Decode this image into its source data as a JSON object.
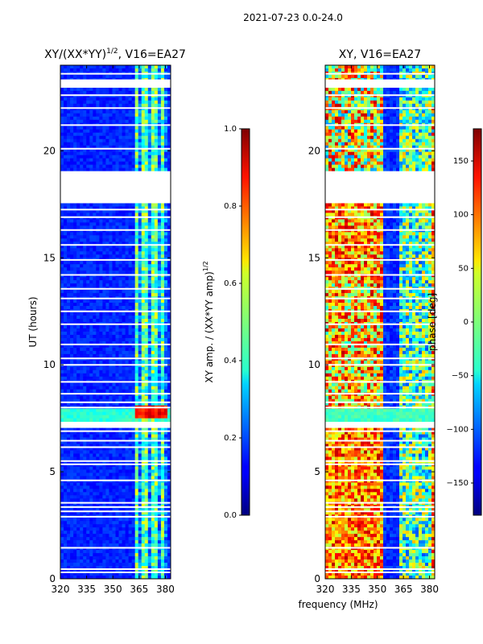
{
  "chart_data": {
    "suptitle": "2021-07-23 0.0-24.0",
    "shared_xlabel": "frequency (MHz)",
    "panels": [
      {
        "id": "amp",
        "type": "heatmap",
        "title": "XY/(XX*YY)^{1/2}, V16=EA27",
        "title_main": "XY/(XX*YY)",
        "title_exp": "1/2",
        "title_tail": ", V16=EA27",
        "ylabel": "UT (hours)",
        "xlim": [
          320,
          383
        ],
        "ylim": [
          0,
          24
        ],
        "xticks": [
          "320",
          "335",
          "350",
          "365",
          "380"
        ],
        "xtick_values": [
          320,
          335,
          350,
          365,
          380
        ],
        "yticks": [
          "0",
          "5",
          "10",
          "15",
          "20"
        ],
        "ytick_values": [
          0,
          5,
          10,
          15,
          20
        ],
        "bright_band_mhz": [
          360,
          382
        ],
        "gaps_ut": [
          [
            19.05,
            17.6
          ],
          [
            23.3,
            22.95
          ],
          [
            7.05,
            7.3
          ],
          [
            13.45,
            13.65
          ]
        ]
      },
      {
        "id": "phase",
        "type": "heatmap",
        "title": "XY, V16=EA27",
        "ylabel": "",
        "xlim": [
          320,
          383
        ],
        "ylim": [
          0,
          24
        ],
        "xticks": [
          "320",
          "335",
          "350",
          "365",
          "380"
        ],
        "xtick_values": [
          320,
          335,
          350,
          365,
          380
        ],
        "yticks": [
          "0",
          "5",
          "10",
          "15",
          "20"
        ],
        "ytick_values": [
          0,
          5,
          10,
          15,
          20
        ]
      }
    ],
    "colorbars": [
      {
        "id": "cb-amp",
        "label_main": "XY amp. / (XX*YY amp)",
        "label_exp": "1/2",
        "range": [
          0.0,
          1.0
        ],
        "ticks": [
          0.0,
          0.2,
          0.4,
          0.6,
          0.8,
          1.0
        ],
        "tick_labels": [
          "0.0",
          "0.2",
          "0.4",
          "0.6",
          "0.8",
          "1.0"
        ],
        "colormap": "jet"
      },
      {
        "id": "cb-phase",
        "label": "phase [deg]",
        "range": [
          -180,
          180
        ],
        "ticks": [
          -150,
          -100,
          -50,
          0,
          50,
          100,
          150
        ],
        "tick_labels": [
          "−150",
          "−100",
          "−50",
          "0",
          "50",
          "100",
          "150"
        ],
        "colormap": "jet"
      }
    ]
  }
}
